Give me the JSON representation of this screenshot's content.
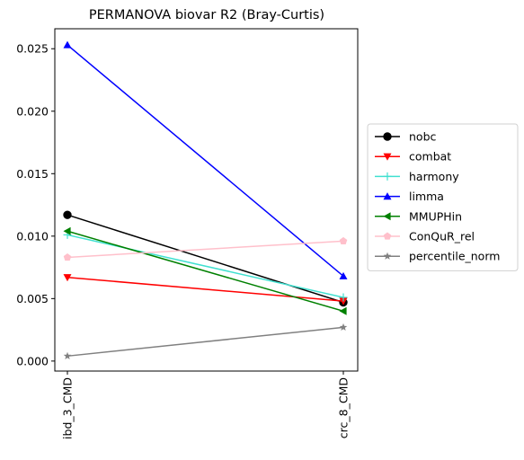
{
  "chart_data": {
    "type": "line",
    "title": "PERMANOVA biovar R2 (Bray-Curtis)",
    "xlabel": "",
    "ylabel": "",
    "categories": [
      "ibd_3_CMD",
      "crc_8_CMD"
    ],
    "ylim": [
      -0.0008,
      0.0266
    ],
    "yticks": [
      "0.000",
      "0.005",
      "0.010",
      "0.015",
      "0.020",
      "0.025"
    ],
    "grid": false,
    "legend_position": "right",
    "series": [
      {
        "name": "nobc",
        "values": [
          0.0117,
          0.0047
        ],
        "color": "#000000",
        "marker": "circle"
      },
      {
        "name": "combat",
        "values": [
          0.0067,
          0.0048
        ],
        "color": "#ff0000",
        "marker": "triangle-down"
      },
      {
        "name": "harmony",
        "values": [
          0.0101,
          0.0051
        ],
        "color": "#40e0d0",
        "marker": "plus"
      },
      {
        "name": "limma",
        "values": [
          0.0253,
          0.0068
        ],
        "color": "#0000ff",
        "marker": "triangle-up"
      },
      {
        "name": "MMUPHin",
        "values": [
          0.0104,
          0.004
        ],
        "color": "#008000",
        "marker": "triangle-left"
      },
      {
        "name": "ConQuR_rel",
        "values": [
          0.0083,
          0.0096
        ],
        "color": "#ffc0cb",
        "marker": "pentagon"
      },
      {
        "name": "percentile_norm",
        "values": [
          0.0004,
          0.0027
        ],
        "color": "#808080",
        "marker": "star"
      }
    ]
  }
}
